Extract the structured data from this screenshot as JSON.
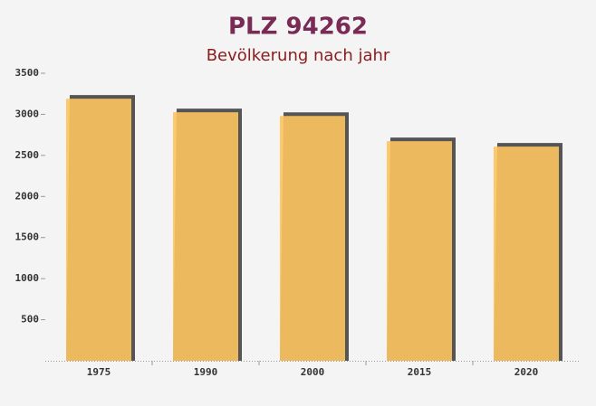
{
  "chart_data": {
    "type": "bar",
    "title": "PLZ 94262",
    "subtitle": "Bevölkerung nach jahr",
    "categories": [
      "1975",
      "1990",
      "2000",
      "2015",
      "2020"
    ],
    "values": [
      3190,
      3025,
      2980,
      2673,
      2607
    ],
    "color": "#fec461",
    "ylim": [
      0,
      3500
    ],
    "yticks": [
      500,
      1000,
      1500,
      2000,
      2500,
      3000,
      3500
    ]
  }
}
